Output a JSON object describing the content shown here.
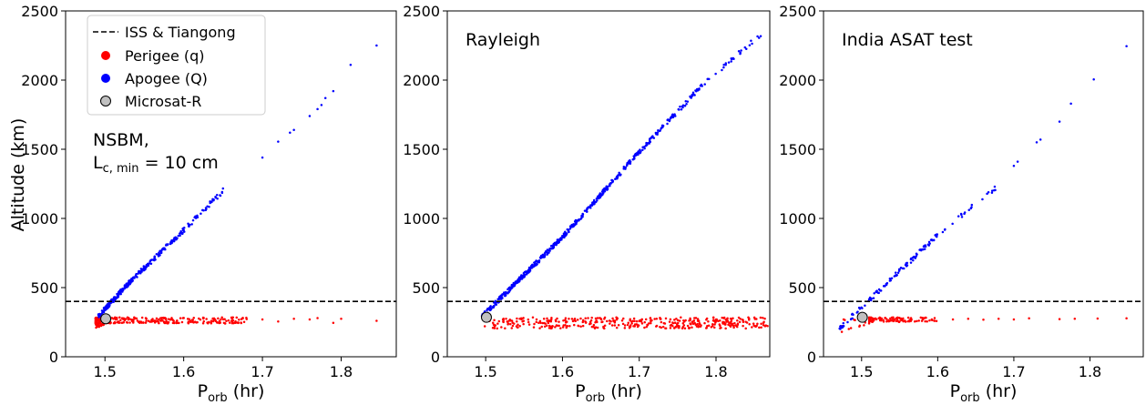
{
  "figure": {
    "ylabel": "Altitude (km)",
    "xlabel_main": "P",
    "xlabel_sub": "orb",
    "xlabel_unit": " (hr)"
  },
  "legend": {
    "placement": "upper-left of first panel",
    "entries": [
      {
        "label": "ISS & Tiangong",
        "marker": "dashed-line",
        "color": "#000000"
      },
      {
        "label": "Perigee (q)",
        "marker": "dot",
        "color": "#ff0000"
      },
      {
        "label": "Apogee (Q)",
        "marker": "dot",
        "color": "#0000ff"
      },
      {
        "label": "Microsat-R",
        "marker": "circle",
        "color": "#c0c0c0"
      }
    ]
  },
  "colors": {
    "perigee": "#ff0000",
    "apogee": "#0000ff",
    "iss_line": "#000000",
    "microsat_fill": "#c0c0c0"
  },
  "chart_data": [
    {
      "type": "scatter",
      "annotation_lines": [
        "NSBM,",
        "L",
        "c, min",
        " = 10 cm"
      ],
      "xlim": [
        1.45,
        1.87
      ],
      "ylim": [
        0,
        2500
      ],
      "xticks": [
        1.5,
        1.6,
        1.7,
        1.8
      ],
      "xtick_labels": [
        "1.5",
        "1.6",
        "1.7",
        "1.8"
      ],
      "yticks": [
        0,
        500,
        1000,
        1500,
        2000,
        2500
      ],
      "ytick_labels": [
        "0",
        "500",
        "1000",
        "1500",
        "2000",
        "2500"
      ],
      "grid": false,
      "iss_altitude": 400,
      "microsat_r": {
        "x": 1.501,
        "y": 275
      },
      "apogee_segments": [
        {
          "x": [
            1.49,
            1.535
          ],
          "y": [
            285,
            560
          ],
          "n": 160
        },
        {
          "x": [
            1.535,
            1.6
          ],
          "y": [
            560,
            915
          ],
          "n": 110
        },
        {
          "x": [
            1.6,
            1.65
          ],
          "y": [
            915,
            1200
          ],
          "n": 40
        }
      ],
      "apogee_points": [
        {
          "x": 1.7,
          "y": 1440
        },
        {
          "x": 1.72,
          "y": 1555
        },
        {
          "x": 1.735,
          "y": 1620
        },
        {
          "x": 1.74,
          "y": 1640
        },
        {
          "x": 1.76,
          "y": 1740
        },
        {
          "x": 1.77,
          "y": 1790
        },
        {
          "x": 1.775,
          "y": 1820
        },
        {
          "x": 1.78,
          "y": 1870
        },
        {
          "x": 1.79,
          "y": 1920
        },
        {
          "x": 1.812,
          "y": 2110
        },
        {
          "x": 1.845,
          "y": 2250
        }
      ],
      "perigee_band": {
        "x": [
          1.488,
          1.68
        ],
        "y": [
          240,
          285
        ],
        "n": 260
      },
      "perigee_wedge": {
        "x": [
          1.488,
          1.505
        ],
        "y": [
          200,
          285
        ],
        "n": 70
      },
      "perigee_points": [
        {
          "x": 1.7,
          "y": 270
        },
        {
          "x": 1.72,
          "y": 255
        },
        {
          "x": 1.74,
          "y": 275
        },
        {
          "x": 1.76,
          "y": 270
        },
        {
          "x": 1.77,
          "y": 280
        },
        {
          "x": 1.79,
          "y": 245
        },
        {
          "x": 1.8,
          "y": 275
        },
        {
          "x": 1.845,
          "y": 260
        }
      ]
    },
    {
      "type": "scatter",
      "annotation": "Rayleigh",
      "xlim": [
        1.45,
        1.87
      ],
      "ylim": [
        0,
        2500
      ],
      "xticks": [
        1.5,
        1.6,
        1.7,
        1.8
      ],
      "xtick_labels": [
        "1.5",
        "1.6",
        "1.7",
        "1.8"
      ],
      "yticks": [
        0,
        500,
        1000,
        1500,
        2000,
        2500
      ],
      "ytick_labels": [
        "0",
        "500",
        "1000",
        "1500",
        "2000",
        "2500"
      ],
      "grid": false,
      "iss_altitude": 400,
      "microsat_r": {
        "x": 1.501,
        "y": 285
      },
      "apogee_segments": [
        {
          "x": [
            1.495,
            1.6
          ],
          "y": [
            290,
            865
          ],
          "n": 260
        },
        {
          "x": [
            1.6,
            1.7
          ],
          "y": [
            865,
            1480
          ],
          "n": 180
        },
        {
          "x": [
            1.7,
            1.78
          ],
          "y": [
            1480,
            1950
          ],
          "n": 90
        },
        {
          "x": [
            1.78,
            1.868
          ],
          "y": [
            1950,
            2380
          ],
          "n": 30
        }
      ],
      "apogee_points": [],
      "perigee_band": {
        "x": [
          1.495,
          1.868
        ],
        "y": [
          205,
          285
        ],
        "n": 420
      },
      "perigee_wedge": {
        "x": [
          1.495,
          1.505
        ],
        "y": [
          200,
          285
        ],
        "n": 0
      },
      "perigee_points": []
    },
    {
      "type": "scatter",
      "annotation": "India ASAT test",
      "xlim": [
        1.45,
        1.87
      ],
      "ylim": [
        0,
        2500
      ],
      "xticks": [
        1.5,
        1.6,
        1.7,
        1.8
      ],
      "xtick_labels": [
        "1.5",
        "1.6",
        "1.7",
        "1.8"
      ],
      "yticks": [
        0,
        500,
        1000,
        1500,
        2000,
        2500
      ],
      "ytick_labels": [
        "0",
        "500",
        "1000",
        "1500",
        "2000",
        "2500"
      ],
      "grid": false,
      "iss_altitude": 400,
      "microsat_r": {
        "x": 1.501,
        "y": 285
      },
      "apogee_segments": [
        {
          "x": [
            1.47,
            1.6
          ],
          "y": [
            200,
            880
          ],
          "n": 110
        },
        {
          "x": [
            1.6,
            1.68
          ],
          "y": [
            880,
            1240
          ],
          "n": 22
        }
      ],
      "apogee_points": [
        {
          "x": 1.7,
          "y": 1380
        },
        {
          "x": 1.705,
          "y": 1410
        },
        {
          "x": 1.73,
          "y": 1550
        },
        {
          "x": 1.735,
          "y": 1570
        },
        {
          "x": 1.76,
          "y": 1700
        },
        {
          "x": 1.775,
          "y": 1830
        },
        {
          "x": 1.805,
          "y": 2005
        },
        {
          "x": 1.848,
          "y": 2245
        }
      ],
      "perigee_band": {
        "x": [
          1.51,
          1.6
        ],
        "y": [
          250,
          285
        ],
        "n": 110
      },
      "perigee_wedge": {
        "x": [
          1.47,
          1.51
        ],
        "y": [
          160,
          280
        ],
        "n": 14
      },
      "perigee_points": [
        {
          "x": 1.62,
          "y": 270
        },
        {
          "x": 1.64,
          "y": 275
        },
        {
          "x": 1.66,
          "y": 268
        },
        {
          "x": 1.68,
          "y": 275
        },
        {
          "x": 1.7,
          "y": 270
        },
        {
          "x": 1.72,
          "y": 278
        },
        {
          "x": 1.76,
          "y": 272
        },
        {
          "x": 1.78,
          "y": 275
        },
        {
          "x": 1.81,
          "y": 276
        },
        {
          "x": 1.848,
          "y": 278
        }
      ]
    }
  ]
}
